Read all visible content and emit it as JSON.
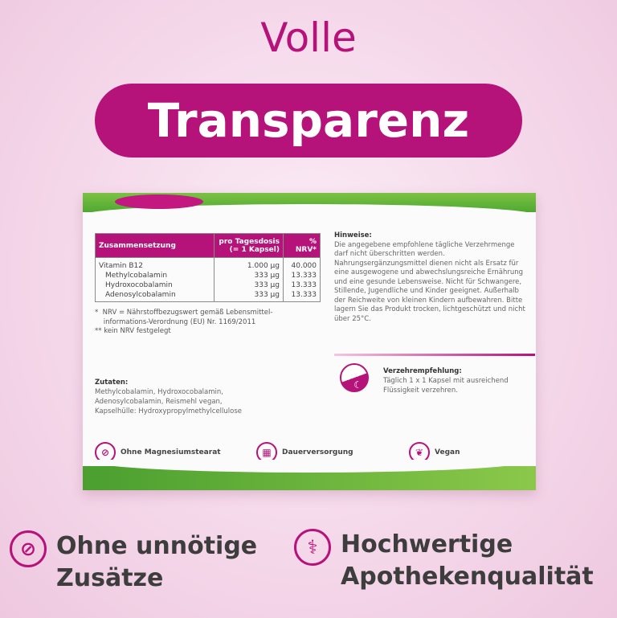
{
  "headline": {
    "line1": "Volle",
    "line2": "Transparenz"
  },
  "table": {
    "headers": [
      "Zusammensetzung",
      "pro Tagesdosis (= 1 Kapsel)",
      "% NRV*"
    ],
    "rows": [
      [
        "Vitamin B12",
        "1.000 µg",
        "40.000"
      ],
      [
        "Methylcobalamin",
        "333 µg",
        "13.333"
      ],
      [
        "Hydroxocobalamin",
        "333 µg",
        "13.333"
      ],
      [
        "Adenosylcobalamin",
        "333 µg",
        "13.333"
      ]
    ]
  },
  "footnotes": [
    "*  NRV = Nährstoffbezugswert gemäß Lebensmittel-",
    "    informations-Verordnung (EU) Nr. 1169/2011",
    "** kein NRV festgelegt"
  ],
  "hinweise": {
    "title": "Hinweise:",
    "text": "Die angegebene empfohlene tägliche Verzehrmenge darf nicht überschritten werden. Nahrungsergänzungsmittel dienen nicht als Ersatz für eine ausgewogene und abwechslungsreiche Ernährung und eine gesunde Lebensweise. Nicht für Schwangere, Stillende, Jugendliche und Kinder geeignet. Außerhalb der Reichweite von kleinen Kindern aufbewahren. Bitte lagern Sie das Produkt trocken, lichtgeschützt und nicht über 25°C."
  },
  "verzehr": {
    "title": "Verzehrempfehlung:",
    "line1": "Täglich 1 x 1 Kapsel mit ausreichend",
    "line2": "Flüssigkeit verzehren."
  },
  "zutaten": {
    "title": "Zutaten:",
    "lines": [
      "Methylcobalamin, Hydroxocobalamin,",
      "Adenosylcobalamin, Reismehl vegan,",
      "Kapselhülle: Hydroxypropylmethylcellulose"
    ]
  },
  "features": [
    "Ohne Magnesiumstearat",
    "Dauerversorgung",
    "Vegan"
  ],
  "benefits": [
    {
      "line1": "Ohne unnötige",
      "line2": "Zusätze",
      "icon": "no-flask-icon"
    },
    {
      "line1": "Hochwertige",
      "line2": "Apothekenqualität",
      "icon": "pharmacy-icon"
    }
  ],
  "colors": {
    "accent": "#b5127a",
    "green": "#5fb236"
  }
}
